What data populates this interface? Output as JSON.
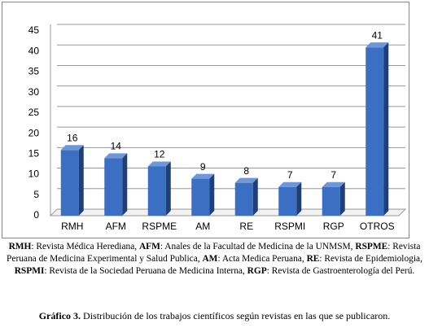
{
  "chart_data": {
    "type": "bar",
    "categories": [
      "RMH",
      "AFM",
      "RSPME",
      "AM",
      "RE",
      "RSPMI",
      "RGP",
      "OTROS"
    ],
    "values": [
      16,
      14,
      12,
      9,
      8,
      7,
      7,
      41
    ],
    "color": "#3a6fc4",
    "ylim": [
      0,
      45
    ],
    "yticks": [
      0,
      5,
      10,
      15,
      20,
      25,
      30,
      35,
      40,
      45
    ],
    "grid": true
  },
  "notes": [
    {
      "abbr": "RMH",
      "text": ": Revista Médica Herediana, "
    },
    {
      "abbr": "AFM",
      "text": ": Anales de la Facultad de Medicina de la UNMSM, "
    },
    {
      "abbr": "RSPME",
      "text": ": Revista Peruana de Medicina Experimental y Salud Publica, "
    },
    {
      "abbr": "AM",
      "text": ": Acta Medica Peruana, "
    },
    {
      "abbr": "RE",
      "text": ": Revista de Epidemiologia, "
    },
    {
      "abbr": "RSPMI",
      "text": ": Revista de la Sociedad Peruana de Medicina Interna, "
    },
    {
      "abbr": "RGP",
      "text": ": Revista de Gastroenterología del Perú."
    }
  ],
  "caption": {
    "label": "Gráfico 3.",
    "text": " Distribución de los trabajos científicos según revistas en las que se publicaron."
  }
}
